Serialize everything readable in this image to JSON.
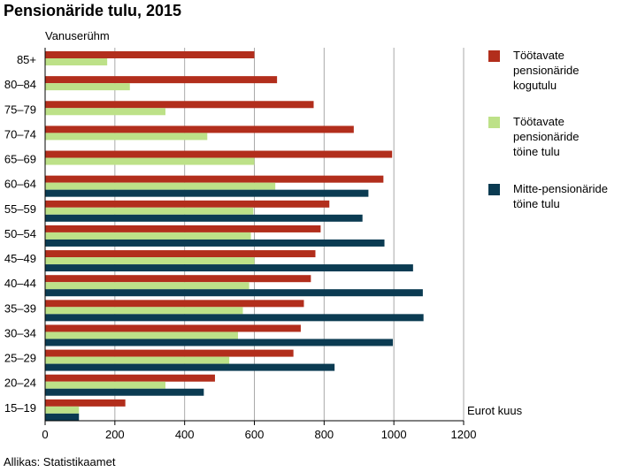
{
  "title": "Pensionäride tulu, 2015",
  "source": "Allikas: Statistikaamet",
  "colors": {
    "series1": "#b22e1c",
    "series2": "#bde188",
    "series3": "#0b3b52",
    "grid": "#aaaaaa",
    "axis": "#000000"
  },
  "chart_data": {
    "type": "bar",
    "orientation": "horizontal",
    "title": "Pensionäride tulu, 2015",
    "category_axis_label": "Vanuserühm",
    "value_axis_label": "Eurot kuus",
    "xlim": [
      0,
      1200
    ],
    "ticks": [
      0,
      200,
      400,
      600,
      800,
      1000,
      1200
    ],
    "grid": true,
    "legend_position": "right",
    "categories": [
      "85+",
      "80–84",
      "75–79",
      "70–74",
      "65–69",
      "60–64",
      "55–59",
      "50–54",
      "45–49",
      "40–44",
      "35–39",
      "30–34",
      "25–29",
      "20–24",
      "15–19"
    ],
    "series": [
      {
        "name": "Töötavate pensionäride kogutulu",
        "legend_lines": [
          "Töötavate",
          "pensionäride",
          "kogutulu"
        ],
        "values": [
          600,
          665,
          770,
          885,
          995,
          970,
          815,
          790,
          775,
          762,
          742,
          733,
          712,
          487,
          230
        ]
      },
      {
        "name": "Töötavate pensionäride töine tulu",
        "legend_lines": [
          "Töötavate",
          "pensionäride",
          "töine tulu"
        ],
        "values": [
          178,
          243,
          345,
          465,
          600,
          660,
          597,
          590,
          600,
          585,
          567,
          553,
          528,
          345,
          97
        ]
      },
      {
        "name": "Mitte-pensionäride töine tulu",
        "legend_lines": [
          "Mitte-pensionäride",
          "töine tulu"
        ],
        "values": [
          null,
          null,
          null,
          null,
          null,
          927,
          910,
          973,
          1055,
          1083,
          1085,
          997,
          830,
          455,
          97
        ]
      }
    ]
  }
}
